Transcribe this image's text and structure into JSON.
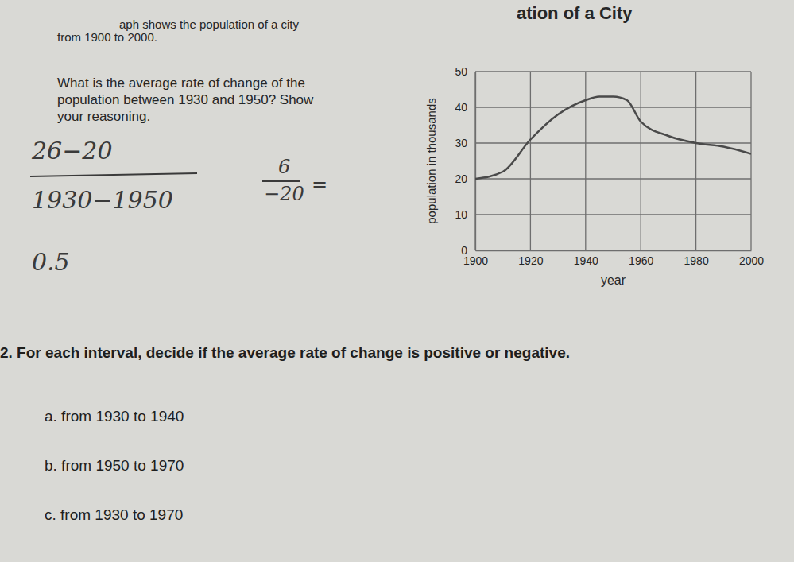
{
  "chart_data": {
    "type": "line",
    "x": [
      1900,
      1910,
      1920,
      1930,
      1940,
      1945,
      1950,
      1955,
      1960,
      1970,
      1980,
      1990,
      2000
    ],
    "values": [
      20,
      22,
      31,
      38,
      42,
      43,
      43,
      42,
      36,
      32,
      30,
      29,
      27
    ],
    "color": "#4a4a4a",
    "x_label": "year",
    "y_label": "population in thousands",
    "xlim": [
      1900,
      2000
    ],
    "xticks": [
      1900,
      1920,
      1940,
      1960,
      1980,
      2000
    ],
    "ylim": [
      0,
      50
    ],
    "yticks": [
      0,
      10,
      20,
      30,
      40,
      50
    ],
    "grid": true
  },
  "page": {
    "title": "ation of a City",
    "intro": [
      "aph shows the population of a city",
      "from 1900 to 2000."
    ],
    "question_1": [
      "What is the average rate of change of the",
      "population between 1930 and 1950? Show",
      "your reasoning."
    ],
    "handwriting": [
      "26−20",
      "1930−1950",
      "6",
      "−20",
      "=",
      "0.5"
    ],
    "question_2": "2. For each interval, decide if the average rate of change is positive or negative.",
    "intervals": [
      "a. from 1930 to 1940",
      "b. from 1950 to 1970",
      "c. from 1930 to 1970"
    ]
  }
}
